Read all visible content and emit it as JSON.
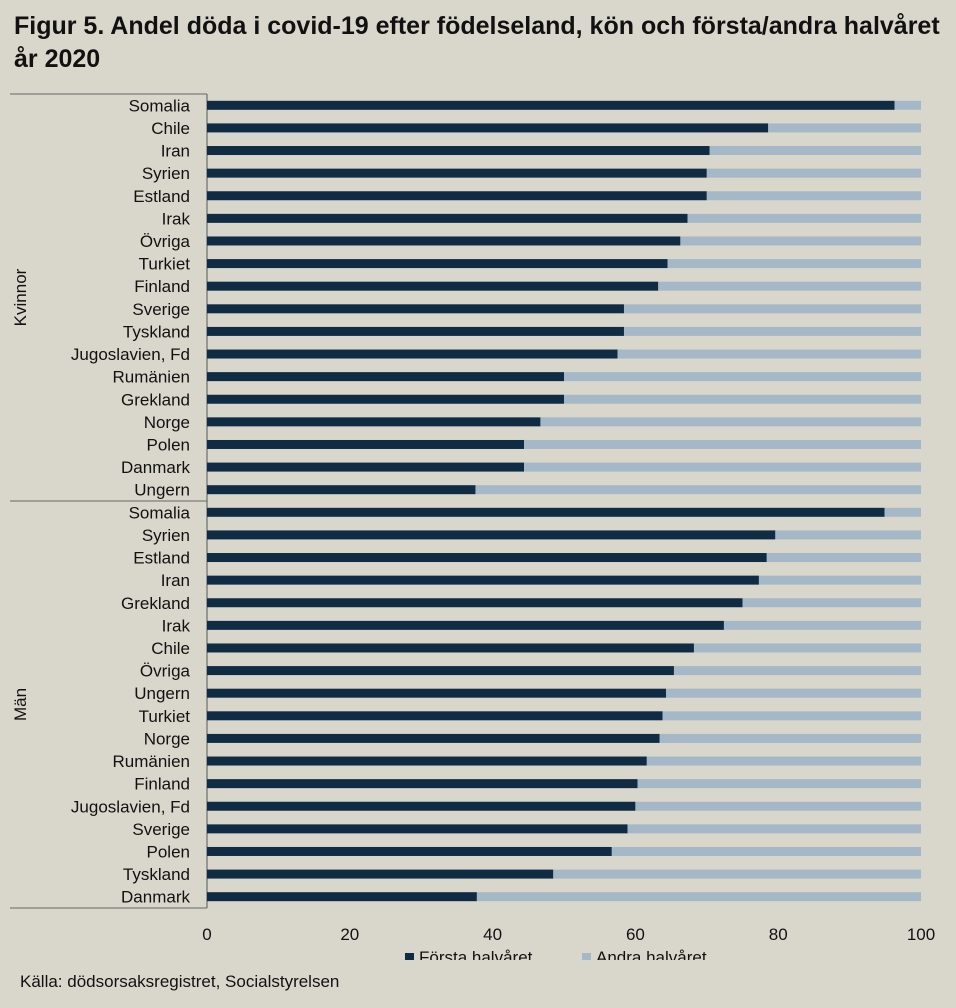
{
  "title": "Figur 5. Andel döda i covid-19 efter födelseland, kön och första/andra halvåret år 2020",
  "source": "Källa: dödsorsaksregistret, Socialstyrelsen",
  "chart_data": {
    "type": "bar",
    "orientation": "horizontal",
    "stacked": true,
    "xlim": [
      0,
      100
    ],
    "xticks": [
      0,
      20,
      40,
      60,
      80,
      100
    ],
    "grid": false,
    "legend_position": "bottom",
    "colors": {
      "first": "#0f2c44",
      "second": "#a5b8c7"
    },
    "series": [
      {
        "name": "Första halvåret"
      },
      {
        "name": "Andra halvåret"
      }
    ],
    "groups": [
      {
        "name": "Kvinnor",
        "categories": [
          "Somalia",
          "Chile",
          "Iran",
          "Syrien",
          "Estland",
          "Irak",
          "Övriga",
          "Turkiet",
          "Finland",
          "Sverige",
          "Tyskland",
          "Jugoslavien, Fd",
          "Rumänien",
          "Grekland",
          "Norge",
          "Polen",
          "Danmark",
          "Ungern"
        ],
        "first_half": [
          96.3,
          78.6,
          70.4,
          70.0,
          70.0,
          67.3,
          66.3,
          64.5,
          63.2,
          58.4,
          58.4,
          57.5,
          50.0,
          50.0,
          46.7,
          44.4,
          44.4,
          37.6
        ]
      },
      {
        "name": "Män",
        "categories": [
          "Somalia",
          "Syrien",
          "Estland",
          "Iran",
          "Grekland",
          "Irak",
          "Chile",
          "Övriga",
          "Ungern",
          "Turkiet",
          "Norge",
          "Rumänien",
          "Finland",
          "Jugoslavien, Fd",
          "Sverige",
          "Polen",
          "Tyskland",
          "Danmark"
        ],
        "first_half": [
          94.9,
          79.6,
          78.4,
          77.3,
          75.0,
          72.4,
          68.2,
          65.4,
          64.3,
          63.8,
          63.4,
          61.6,
          60.3,
          60.0,
          58.9,
          56.7,
          48.5,
          37.8
        ]
      }
    ]
  }
}
